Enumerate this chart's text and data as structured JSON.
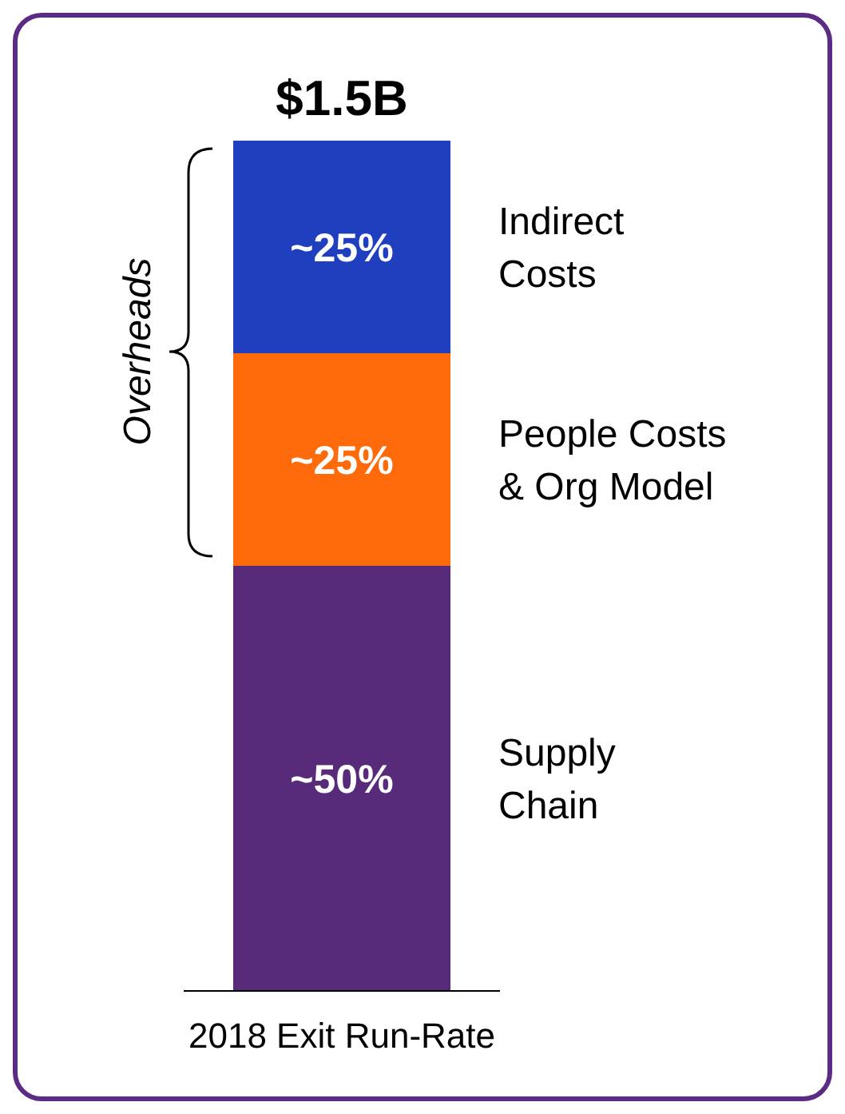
{
  "chart_data": {
    "type": "bar",
    "stacked": true,
    "categories": [
      "2018 Exit Run-Rate"
    ],
    "series": [
      {
        "name": "Supply Chain",
        "color": "#582a7a",
        "values": [
          50
        ],
        "value_labels": [
          "~50%"
        ]
      },
      {
        "name": "People Costs & Org Model",
        "color": "#ff6a0a",
        "values": [
          25
        ],
        "value_labels": [
          "~25%"
        ]
      },
      {
        "name": "Indirect Costs",
        "color": "#1f3fbf",
        "values": [
          25
        ],
        "value_labels": [
          "~25%"
        ]
      }
    ],
    "title": "$1.5B",
    "annotations": [
      "Overheads"
    ],
    "legend": false,
    "grid": false
  }
}
